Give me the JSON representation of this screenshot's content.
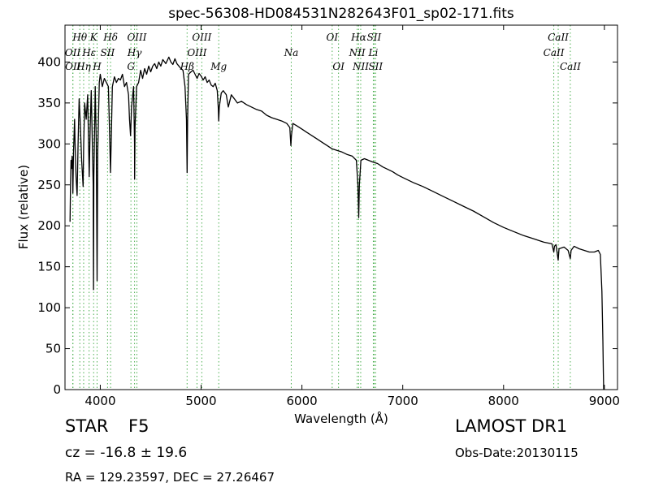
{
  "chart_data": {
    "type": "line",
    "title": "spec-56308-HD084531N282643F01_sp02-171.fits",
    "xlabel": "Wavelength (Å)",
    "ylabel": "Flux (relative)",
    "xlim": [
      3650,
      9130
    ],
    "ylim": [
      0,
      445
    ],
    "xticks": [
      4000,
      5000,
      6000,
      7000,
      8000,
      9000
    ],
    "yticks": [
      0,
      50,
      100,
      150,
      200,
      250,
      300,
      350,
      400
    ],
    "grid": false,
    "line_color": "#000000",
    "marker_line_color": "#4caf50",
    "series": [
      {
        "values": [
          [
            3700,
            205
          ],
          [
            3705,
            250
          ],
          [
            3710,
            280
          ],
          [
            3715,
            270
          ],
          [
            3720,
            285
          ],
          [
            3725,
            275
          ],
          [
            3728,
            240
          ],
          [
            3735,
            290
          ],
          [
            3745,
            330
          ],
          [
            3750,
            300
          ],
          [
            3760,
            260
          ],
          [
            3770,
            237
          ],
          [
            3780,
            300
          ],
          [
            3790,
            355
          ],
          [
            3800,
            330
          ],
          [
            3815,
            280
          ],
          [
            3830,
            248
          ],
          [
            3835,
            300
          ],
          [
            3845,
            350
          ],
          [
            3860,
            330
          ],
          [
            3875,
            360
          ],
          [
            3890,
            260
          ],
          [
            3900,
            320
          ],
          [
            3910,
            365
          ],
          [
            3930,
            250
          ],
          [
            3933,
            122
          ],
          [
            3936,
            260
          ],
          [
            3950,
            370
          ],
          [
            3960,
            300
          ],
          [
            3968,
            133
          ],
          [
            3975,
            290
          ],
          [
            3990,
            375
          ],
          [
            4000,
            385
          ],
          [
            4020,
            370
          ],
          [
            4040,
            380
          ],
          [
            4060,
            375
          ],
          [
            4080,
            370
          ],
          [
            4095,
            300
          ],
          [
            4101,
            265
          ],
          [
            4108,
            300
          ],
          [
            4120,
            370
          ],
          [
            4140,
            382
          ],
          [
            4160,
            375
          ],
          [
            4180,
            380
          ],
          [
            4200,
            378
          ],
          [
            4220,
            385
          ],
          [
            4240,
            370
          ],
          [
            4260,
            375
          ],
          [
            4280,
            360
          ],
          [
            4290,
            330
          ],
          [
            4300,
            310
          ],
          [
            4310,
            345
          ],
          [
            4330,
            370
          ],
          [
            4340,
            300
          ],
          [
            4341,
            257
          ],
          [
            4345,
            320
          ],
          [
            4360,
            370
          ],
          [
            4380,
            375
          ],
          [
            4400,
            390
          ],
          [
            4420,
            380
          ],
          [
            4440,
            392
          ],
          [
            4460,
            385
          ],
          [
            4480,
            395
          ],
          [
            4500,
            388
          ],
          [
            4520,
            395
          ],
          [
            4540,
            398
          ],
          [
            4560,
            392
          ],
          [
            4580,
            400
          ],
          [
            4600,
            395
          ],
          [
            4620,
            403
          ],
          [
            4650,
            398
          ],
          [
            4680,
            406
          ],
          [
            4700,
            400
          ],
          [
            4720,
            397
          ],
          [
            4740,
            404
          ],
          [
            4760,
            398
          ],
          [
            4780,
            395
          ],
          [
            4800,
            392
          ],
          [
            4820,
            390
          ],
          [
            4840,
            370
          ],
          [
            4855,
            330
          ],
          [
            4861,
            265
          ],
          [
            4866,
            330
          ],
          [
            4875,
            385
          ],
          [
            4900,
            388
          ],
          [
            4920,
            390
          ],
          [
            4940,
            385
          ],
          [
            4960,
            380
          ],
          [
            4980,
            386
          ],
          [
            5000,
            383
          ],
          [
            5020,
            378
          ],
          [
            5040,
            382
          ],
          [
            5060,
            375
          ],
          [
            5080,
            378
          ],
          [
            5100,
            372
          ],
          [
            5120,
            370
          ],
          [
            5140,
            374
          ],
          [
            5160,
            365
          ],
          [
            5170,
            345
          ],
          [
            5175,
            328
          ],
          [
            5180,
            345
          ],
          [
            5200,
            362
          ],
          [
            5220,
            365
          ],
          [
            5250,
            360
          ],
          [
            5270,
            345
          ],
          [
            5300,
            360
          ],
          [
            5330,
            355
          ],
          [
            5360,
            350
          ],
          [
            5400,
            352
          ],
          [
            5450,
            348
          ],
          [
            5500,
            345
          ],
          [
            5550,
            342
          ],
          [
            5600,
            340
          ],
          [
            5650,
            335
          ],
          [
            5700,
            332
          ],
          [
            5750,
            330
          ],
          [
            5800,
            328
          ],
          [
            5850,
            325
          ],
          [
            5880,
            320
          ],
          [
            5890,
            298
          ],
          [
            5896,
            310
          ],
          [
            5910,
            325
          ],
          [
            5950,
            322
          ],
          [
            6000,
            318
          ],
          [
            6050,
            314
          ],
          [
            6100,
            310
          ],
          [
            6150,
            306
          ],
          [
            6200,
            302
          ],
          [
            6250,
            298
          ],
          [
            6300,
            294
          ],
          [
            6350,
            292
          ],
          [
            6400,
            290
          ],
          [
            6450,
            287
          ],
          [
            6500,
            285
          ],
          [
            6540,
            280
          ],
          [
            6555,
            250
          ],
          [
            6563,
            210
          ],
          [
            6570,
            250
          ],
          [
            6585,
            280
          ],
          [
            6620,
            282
          ],
          [
            6660,
            280
          ],
          [
            6700,
            278
          ],
          [
            6750,
            276
          ],
          [
            6800,
            272
          ],
          [
            6850,
            269
          ],
          [
            6900,
            266
          ],
          [
            6950,
            262
          ],
          [
            7000,
            259
          ],
          [
            7100,
            253
          ],
          [
            7200,
            248
          ],
          [
            7300,
            242
          ],
          [
            7400,
            236
          ],
          [
            7500,
            230
          ],
          [
            7600,
            224
          ],
          [
            7700,
            218
          ],
          [
            7800,
            211
          ],
          [
            7900,
            204
          ],
          [
            8000,
            198
          ],
          [
            8100,
            193
          ],
          [
            8200,
            188
          ],
          [
            8300,
            184
          ],
          [
            8400,
            180
          ],
          [
            8480,
            178
          ],
          [
            8498,
            168
          ],
          [
            8505,
            175
          ],
          [
            8520,
            177
          ],
          [
            8542,
            158
          ],
          [
            8550,
            172
          ],
          [
            8600,
            174
          ],
          [
            8640,
            170
          ],
          [
            8662,
            160
          ],
          [
            8670,
            170
          ],
          [
            8700,
            175
          ],
          [
            8750,
            172
          ],
          [
            8800,
            170
          ],
          [
            8850,
            168
          ],
          [
            8900,
            168
          ],
          [
            8940,
            170
          ],
          [
            8960,
            165
          ],
          [
            8975,
            120
          ],
          [
            8985,
            60
          ],
          [
            8990,
            20
          ],
          [
            8993,
            0
          ]
        ]
      }
    ],
    "lines": [
      {
        "label": "OII",
        "x": 3727,
        "row": 2
      },
      {
        "label": "OII",
        "x": 3729,
        "row": 3
      },
      {
        "label": "Hθ",
        "x": 3797,
        "row": 1
      },
      {
        "label": "Hη",
        "x": 3835,
        "row": 3
      },
      {
        "label": "Hε",
        "x": 3889,
        "row": 2
      },
      {
        "label": "K",
        "x": 3934,
        "row": 1
      },
      {
        "label": "H",
        "x": 3968,
        "row": 3
      },
      {
        "label": "SII",
        "x": 4072,
        "row": 2
      },
      {
        "label": "Hδ",
        "x": 4102,
        "row": 1
      },
      {
        "label": "G",
        "x": 4304,
        "row": 3
      },
      {
        "label": "Hγ",
        "x": 4340,
        "row": 2
      },
      {
        "label": "OIII",
        "x": 4363,
        "row": 1
      },
      {
        "label": "Hβ",
        "x": 4861,
        "row": 3
      },
      {
        "label": "OIII",
        "x": 4959,
        "row": 2
      },
      {
        "label": "OIII",
        "x": 5007,
        "row": 1
      },
      {
        "label": "Mg",
        "x": 5175,
        "row": 3
      },
      {
        "label": "Na",
        "x": 5894,
        "row": 2
      },
      {
        "label": "OI",
        "x": 6300,
        "row": 1
      },
      {
        "label": "OI",
        "x": 6363,
        "row": 3
      },
      {
        "label": "NII",
        "x": 6548,
        "row": 2
      },
      {
        "label": "Hα",
        "x": 6563,
        "row": 1
      },
      {
        "label": "NII",
        "x": 6583,
        "row": 3
      },
      {
        "label": "Li",
        "x": 6708,
        "row": 2
      },
      {
        "label": "SII",
        "x": 6716,
        "row": 1
      },
      {
        "label": "SII",
        "x": 6731,
        "row": 3
      },
      {
        "label": "CaII",
        "x": 8498,
        "row": 2
      },
      {
        "label": "CaII",
        "x": 8542,
        "row": 1
      },
      {
        "label": "CaII",
        "x": 8662,
        "row": 3
      }
    ]
  },
  "info": {
    "class_label": "STAR",
    "subclass": "F5",
    "survey": "LAMOST DR1",
    "cz": "cz = -16.8 ± 19.6",
    "obs_date": "Obs-Date:20130115",
    "radec": "RA = 129.23597, DEC = 27.26467"
  }
}
